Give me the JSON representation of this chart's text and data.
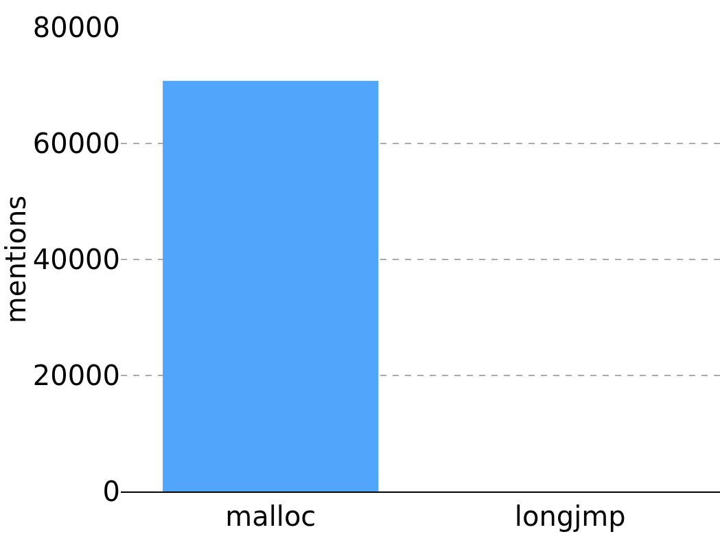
{
  "chart_data": {
    "type": "bar",
    "ylabel": "mentions",
    "categories": [
      "malloc",
      "longjmp"
    ],
    "values": [
      70800,
      0
    ],
    "color": "#51a6fb",
    "ylim": [
      0,
      80000
    ],
    "yticks": [
      0,
      20000,
      40000,
      60000,
      80000
    ],
    "grid": "y",
    "legend": false
  }
}
